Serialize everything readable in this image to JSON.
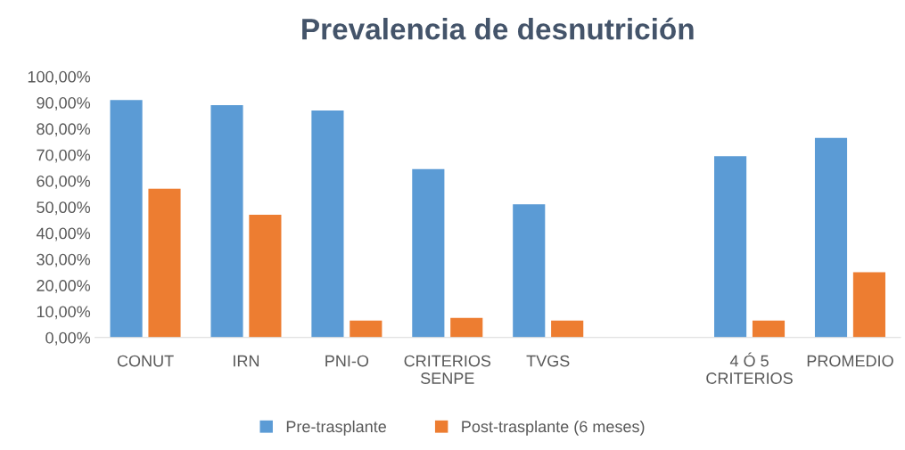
{
  "chart_data": {
    "type": "bar",
    "title": "Prevalencia de desnutrición",
    "categories": [
      "CONUT",
      "IRN",
      "PNI-O",
      "CRITERIOS\nSENPE",
      "TVGS",
      null,
      "4 Ó 5\nCRITERIOS",
      "PROMEDIO"
    ],
    "series": [
      {
        "name": "Pre-trasplante",
        "color": "#5b9bd5",
        "values": [
          91,
          89,
          87,
          64.5,
          51,
          null,
          69.5,
          76.5
        ]
      },
      {
        "name": "Post-trasplante (6 meses)",
        "color": "#ed7d31",
        "values": [
          57,
          47,
          6.5,
          7.5,
          6.5,
          null,
          6.5,
          25
        ]
      }
    ],
    "ylim": [
      0,
      100
    ],
    "yticks": [
      {
        "value": 0,
        "label": "0,00%"
      },
      {
        "value": 10,
        "label": "10,00%"
      },
      {
        "value": 20,
        "label": "20,00%"
      },
      {
        "value": 30,
        "label": "30,00%"
      },
      {
        "value": 40,
        "label": "40,00%"
      },
      {
        "value": 50,
        "label": "50,00%"
      },
      {
        "value": 60,
        "label": "60,00%"
      },
      {
        "value": 70,
        "label": "70,00%"
      },
      {
        "value": 80,
        "label": "80,00%"
      },
      {
        "value": 90,
        "label": "90,00%"
      },
      {
        "value": 100,
        "label": "100,00%"
      }
    ],
    "grid": false,
    "legend": "bottom"
  }
}
